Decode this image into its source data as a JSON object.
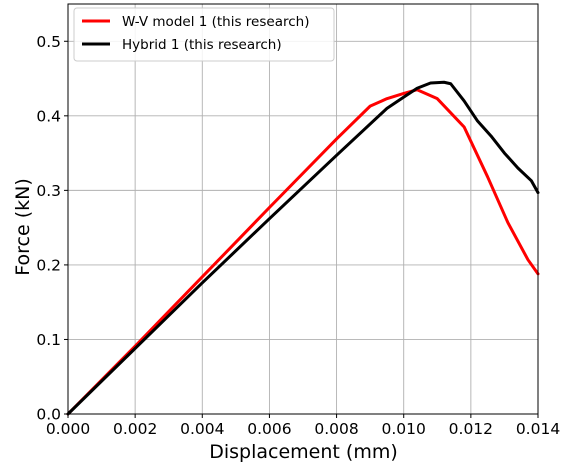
{
  "chart_data": {
    "type": "line",
    "title": "",
    "xlabel": "Displacement (mm)",
    "ylabel": "Force (kN)",
    "xlim": [
      0.0,
      0.014
    ],
    "ylim": [
      0.0,
      0.55
    ],
    "xticks": [
      0.0,
      0.002,
      0.004,
      0.006,
      0.008,
      0.01,
      0.012,
      0.014
    ],
    "xtick_labels": [
      "0.000",
      "0.002",
      "0.004",
      "0.006",
      "0.008",
      "0.010",
      "0.012",
      "0.014"
    ],
    "yticks": [
      0.0,
      0.1,
      0.2,
      0.3,
      0.4,
      0.5
    ],
    "ytick_labels": [
      "0.0",
      "0.1",
      "0.2",
      "0.3",
      "0.4",
      "0.5"
    ],
    "grid": true,
    "legend_position": "top-left",
    "series": [
      {
        "name": "W-V model 1 (this research)",
        "color": "#ff0000",
        "x": [
          0.0,
          0.002,
          0.004,
          0.006,
          0.008,
          0.009,
          0.0095,
          0.01,
          0.0104,
          0.011,
          0.0118,
          0.0125,
          0.0131,
          0.0137,
          0.014
        ],
        "y": [
          0.0,
          0.091,
          0.184,
          0.277,
          0.369,
          0.413,
          0.423,
          0.43,
          0.435,
          0.423,
          0.385,
          0.318,
          0.257,
          0.207,
          0.188
        ]
      },
      {
        "name": "Hybrid 1 (this research)",
        "color": "#000000",
        "x": [
          0.0,
          0.002,
          0.004,
          0.006,
          0.008,
          0.0095,
          0.01,
          0.0104,
          0.0108,
          0.0112,
          0.0114,
          0.0118,
          0.0122,
          0.0126,
          0.013,
          0.0134,
          0.0138,
          0.014
        ],
        "y": [
          0.0,
          0.088,
          0.176,
          0.262,
          0.347,
          0.41,
          0.425,
          0.437,
          0.444,
          0.445,
          0.443,
          0.42,
          0.393,
          0.373,
          0.35,
          0.33,
          0.313,
          0.297
        ]
      }
    ]
  }
}
